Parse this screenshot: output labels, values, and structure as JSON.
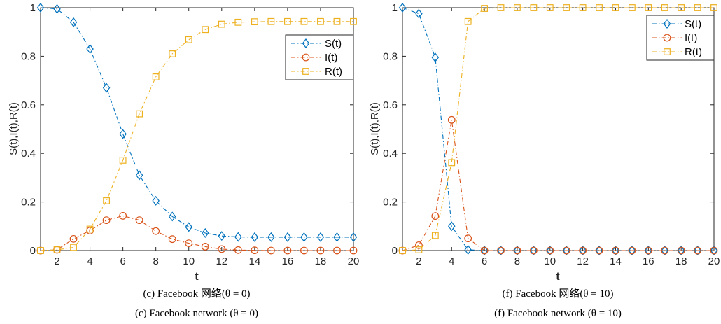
{
  "colors": {
    "S": "#0072BD",
    "I": "#D95319",
    "R": "#EDB120"
  },
  "chart_data": [
    {
      "type": "line",
      "caption_cn": "(c) Facebook 网络(θ = 0)",
      "caption_en": "(c) Facebook network (θ = 0)",
      "xlabel": "t",
      "ylabel": "S(t),I(t),R(t)",
      "xlim": [
        1,
        20
      ],
      "ylim": [
        0,
        1
      ],
      "xticks": [
        2,
        4,
        6,
        8,
        10,
        12,
        14,
        16,
        18,
        20
      ],
      "yticks": [
        0,
        0.2,
        0.4,
        0.6,
        0.8,
        1
      ],
      "ytick_labels": [
        "0",
        "0.2",
        "0.4",
        "0.6",
        "0.8",
        "1"
      ],
      "grid": false,
      "legend": "top-right",
      "x": [
        1,
        2,
        3,
        4,
        5,
        6,
        7,
        8,
        9,
        10,
        11,
        12,
        13,
        14,
        15,
        16,
        17,
        18,
        19,
        20
      ],
      "series": [
        {
          "name": "S(t)",
          "marker": "diamond",
          "values": [
            1.0,
            0.995,
            0.94,
            0.83,
            0.67,
            0.48,
            0.31,
            0.205,
            0.14,
            0.097,
            0.072,
            0.06,
            0.056,
            0.055,
            0.055,
            0.055,
            0.055,
            0.055,
            0.055,
            0.055
          ]
        },
        {
          "name": "I(t)",
          "marker": "circle",
          "values": [
            0.0,
            0.003,
            0.048,
            0.082,
            0.125,
            0.143,
            0.125,
            0.08,
            0.047,
            0.03,
            0.016,
            0.006,
            0.002,
            0.001,
            0.0,
            0.0,
            0.0,
            0.0,
            0.0,
            0.0
          ]
        },
        {
          "name": "R(t)",
          "marker": "square",
          "values": [
            0.0,
            0.003,
            0.013,
            0.088,
            0.205,
            0.372,
            0.563,
            0.715,
            0.81,
            0.868,
            0.91,
            0.932,
            0.94,
            0.942,
            0.943,
            0.943,
            0.943,
            0.943,
            0.943,
            0.943
          ]
        }
      ]
    },
    {
      "type": "line",
      "caption_cn": "(f) Facebook 网络(θ = 10)",
      "caption_en": "(f) Facebook network (θ = 10)",
      "xlabel": "t",
      "ylabel": "S(t),I(t),R(t)",
      "xlim": [
        1,
        20
      ],
      "ylim": [
        0,
        1
      ],
      "xticks": [
        2,
        4,
        6,
        8,
        10,
        12,
        14,
        16,
        18,
        20
      ],
      "yticks": [
        0,
        0.2,
        0.4,
        0.6,
        0.8,
        1
      ],
      "ytick_labels": [
        "0",
        "0.2",
        "0.4",
        "0.6",
        "0.8",
        "1"
      ],
      "grid": false,
      "legend": "top-right",
      "x": [
        1,
        2,
        3,
        4,
        5,
        6,
        7,
        8,
        9,
        10,
        11,
        12,
        13,
        14,
        15,
        16,
        17,
        18,
        19,
        20
      ],
      "series": [
        {
          "name": "S(t)",
          "marker": "diamond",
          "values": [
            1.0,
            0.975,
            0.795,
            0.1,
            0.003,
            0.0,
            0.0,
            0.0,
            0.0,
            0.0,
            0.0,
            0.0,
            0.0,
            0.0,
            0.0,
            0.0,
            0.0,
            0.0,
            0.0,
            0.0
          ]
        },
        {
          "name": "I(t)",
          "marker": "circle",
          "values": [
            0.0,
            0.022,
            0.142,
            0.538,
            0.05,
            0.0,
            0.0,
            0.0,
            0.0,
            0.0,
            0.0,
            0.0,
            0.0,
            0.0,
            0.0,
            0.0,
            0.0,
            0.0,
            0.0,
            0.0
          ]
        },
        {
          "name": "R(t)",
          "marker": "square",
          "values": [
            0.0,
            0.003,
            0.062,
            0.362,
            0.943,
            0.997,
            1.0,
            1.0,
            1.0,
            1.0,
            1.0,
            1.0,
            1.0,
            1.0,
            1.0,
            1.0,
            1.0,
            1.0,
            1.0,
            1.0
          ]
        }
      ]
    }
  ]
}
